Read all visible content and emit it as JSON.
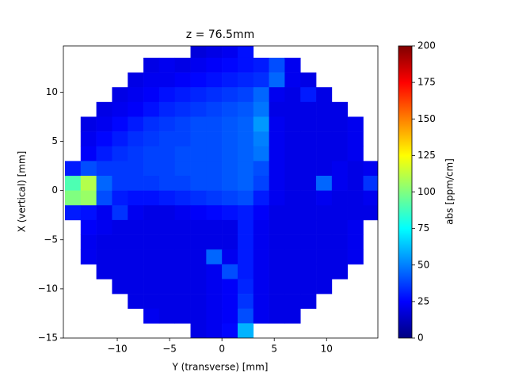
{
  "chart_data": {
    "type": "heatmap",
    "title": "z = 76.5mm",
    "xlabel": "Y (transverse) [mm]",
    "ylabel": "X (vertical) [mm]",
    "colorbar_label": "abs [ppm/cm]",
    "cmap": "jet",
    "clim": [
      0,
      200
    ],
    "cticks": [
      0,
      25,
      50,
      75,
      100,
      125,
      150,
      175,
      200
    ],
    "xlim": [
      -15.15,
      14.9
    ],
    "ylim": [
      -15,
      14.7
    ],
    "xticks": [
      {
        "value": -10,
        "label": "−10"
      },
      {
        "value": -5,
        "label": "−5"
      },
      0,
      5,
      10
    ],
    "yticks": [
      {
        "value": -15,
        "label": "−15"
      },
      {
        "value": -10,
        "label": "−10"
      },
      {
        "value": -5,
        "label": "−5"
      },
      0,
      5,
      10
    ],
    "x": [
      -14.25,
      -12.75,
      -11.25,
      -9.75,
      -8.25,
      -6.75,
      -5.25,
      -3.75,
      -2.25,
      -0.75,
      0.75,
      2.25,
      3.75,
      5.25,
      6.75,
      8.25,
      9.75,
      11.25,
      12.75,
      14.25
    ],
    "y": [
      14.25,
      12.75,
      11.25,
      9.75,
      8.25,
      6.75,
      5.25,
      3.75,
      2.25,
      0.75,
      -0.75,
      -2.25,
      -3.75,
      -5.25,
      -6.75,
      -8.25,
      -9.75,
      -11.25,
      -12.75,
      -14.25
    ],
    "z": [
      [
        null,
        null,
        null,
        null,
        null,
        null,
        null,
        null,
        18,
        20,
        22,
        28,
        null,
        null,
        null,
        null,
        null,
        null,
        null,
        null
      ],
      [
        null,
        null,
        null,
        null,
        null,
        20,
        22,
        20,
        22,
        24,
        26,
        28,
        30,
        40,
        22,
        null,
        null,
        null,
        null,
        null
      ],
      [
        null,
        null,
        null,
        null,
        20,
        22,
        22,
        24,
        26,
        28,
        30,
        32,
        34,
        45,
        22,
        20,
        null,
        null,
        null,
        null
      ],
      [
        null,
        null,
        null,
        20,
        22,
        24,
        28,
        30,
        32,
        34,
        36,
        38,
        45,
        22,
        20,
        30,
        20,
        null,
        null,
        null
      ],
      [
        null,
        null,
        20,
        22,
        24,
        28,
        32,
        34,
        36,
        38,
        40,
        42,
        48,
        20,
        20,
        20,
        20,
        20,
        null,
        null
      ],
      [
        null,
        20,
        22,
        26,
        30,
        34,
        36,
        38,
        40,
        40,
        42,
        44,
        55,
        22,
        20,
        20,
        20,
        20,
        22,
        null
      ],
      [
        null,
        22,
        26,
        30,
        34,
        36,
        38,
        38,
        40,
        40,
        42,
        44,
        50,
        22,
        20,
        20,
        20,
        20,
        22,
        null
      ],
      [
        null,
        24,
        30,
        34,
        36,
        38,
        38,
        40,
        40,
        40,
        42,
        44,
        48,
        22,
        20,
        20,
        20,
        20,
        22,
        null
      ],
      [
        30,
        40,
        36,
        36,
        36,
        38,
        38,
        40,
        40,
        40,
        42,
        44,
        40,
        22,
        20,
        20,
        20,
        22,
        20,
        22
      ],
      [
        90,
        110,
        45,
        36,
        36,
        36,
        38,
        38,
        40,
        40,
        42,
        44,
        38,
        22,
        20,
        20,
        45,
        22,
        20,
        35
      ],
      [
        100,
        105,
        40,
        30,
        28,
        28,
        30,
        32,
        34,
        36,
        38,
        40,
        30,
        22,
        20,
        20,
        22,
        20,
        20,
        22
      ],
      [
        30,
        28,
        22,
        35,
        22,
        20,
        20,
        22,
        24,
        26,
        28,
        30,
        24,
        20,
        20,
        20,
        20,
        20,
        20,
        20
      ],
      [
        null,
        24,
        22,
        20,
        20,
        20,
        20,
        20,
        20,
        20,
        20,
        30,
        22,
        20,
        20,
        20,
        20,
        20,
        22,
        null
      ],
      [
        null,
        22,
        20,
        20,
        20,
        20,
        20,
        20,
        20,
        20,
        20,
        30,
        22,
        20,
        20,
        20,
        20,
        20,
        22,
        null
      ],
      [
        null,
        22,
        20,
        20,
        20,
        20,
        20,
        20,
        20,
        45,
        22,
        30,
        22,
        20,
        20,
        20,
        20,
        20,
        22,
        null
      ],
      [
        null,
        null,
        20,
        20,
        20,
        20,
        20,
        20,
        20,
        22,
        40,
        30,
        22,
        20,
        20,
        20,
        20,
        20,
        null,
        null
      ],
      [
        null,
        null,
        null,
        20,
        20,
        20,
        20,
        20,
        20,
        22,
        24,
        32,
        22,
        20,
        20,
        20,
        20,
        null,
        null,
        null
      ],
      [
        null,
        null,
        null,
        null,
        20,
        20,
        20,
        20,
        20,
        22,
        24,
        35,
        22,
        20,
        20,
        20,
        null,
        null,
        null,
        null
      ],
      [
        null,
        null,
        null,
        null,
        null,
        22,
        20,
        20,
        20,
        22,
        24,
        40,
        22,
        20,
        20,
        null,
        null,
        null,
        null,
        null
      ],
      [
        null,
        null,
        null,
        null,
        null,
        null,
        null,
        null,
        20,
        22,
        26,
        60,
        null,
        null,
        null,
        null,
        null,
        null,
        null,
        null
      ]
    ]
  }
}
